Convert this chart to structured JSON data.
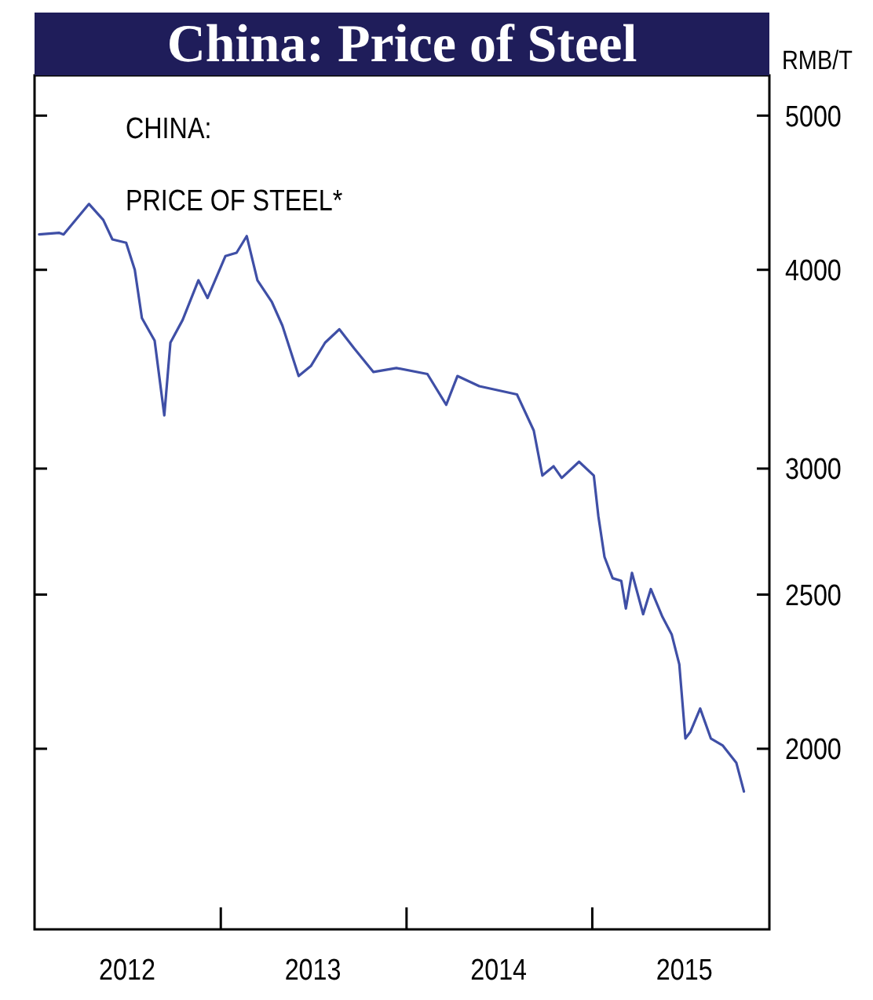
{
  "chart_data": {
    "type": "line",
    "title": "China: Price of Steel",
    "ylabel": "RMB/T",
    "annotations": [
      "CHINA:",
      "PRICE OF STEEL*"
    ],
    "log": true,
    "grid": false,
    "marker": "none",
    "line_style": "solid",
    "xlim": [
      "2012-01-01",
      "2015-12-15"
    ],
    "xticks": [
      {
        "value": "2012-07-01",
        "label": "2012"
      },
      {
        "value": "2013-01-01",
        "label": null
      },
      {
        "value": "2013-07-01",
        "label": "2013"
      },
      {
        "value": "2014-01-01",
        "label": null
      },
      {
        "value": "2014-07-01",
        "label": "2014"
      },
      {
        "value": "2015-01-01",
        "label": null
      },
      {
        "value": "2015-07-01",
        "label": "2015"
      }
    ],
    "ylim": [
      1540,
      5300
    ],
    "yticks": [
      2000,
      2500,
      3000,
      4000,
      5000
    ],
    "x": [
      "2012-01-10",
      "2012-02-18",
      "2012-02-27",
      "2012-04-17",
      "2012-05-15",
      "2012-06-02",
      "2012-06-29",
      "2012-07-16",
      "2012-07-30",
      "2012-08-24",
      "2012-09-12",
      "2012-09-24",
      "2012-10-18",
      "2012-11-18",
      "2012-12-06",
      "2013-01-10",
      "2013-02-01",
      "2013-02-21",
      "2013-03-14",
      "2013-04-11",
      "2013-05-02",
      "2013-06-03",
      "2013-06-27",
      "2013-07-25",
      "2013-08-22",
      "2013-09-20",
      "2013-10-28",
      "2013-12-12",
      "2014-02-11",
      "2014-03-20",
      "2014-04-11",
      "2014-05-24",
      "2014-08-06",
      "2014-09-08",
      "2014-09-25",
      "2014-10-17",
      "2014-11-02",
      "2014-12-06",
      "2015-01-04",
      "2015-01-13",
      "2015-01-25",
      "2015-02-10",
      "2015-02-27",
      "2015-03-08",
      "2015-03-20",
      "2015-04-11",
      "2015-04-26",
      "2015-05-19",
      "2015-06-06",
      "2015-06-21",
      "2015-07-03",
      "2015-07-13",
      "2015-08-01",
      "2015-08-22",
      "2015-09-14",
      "2015-10-11",
      "2015-10-26"
    ],
    "series": [
      {
        "color": "#3f4fa6",
        "values": [
          4210,
          4220,
          4210,
          4400,
          4300,
          4180,
          4160,
          4000,
          3730,
          3610,
          3240,
          3600,
          3720,
          3940,
          3840,
          4080,
          4100,
          4200,
          3940,
          3820,
          3690,
          3430,
          3480,
          3600,
          3670,
          3570,
          3450,
          3470,
          3440,
          3290,
          3430,
          3380,
          3340,
          3170,
          2970,
          3010,
          2960,
          3030,
          2970,
          2800,
          2640,
          2560,
          2550,
          2450,
          2580,
          2430,
          2520,
          2420,
          2360,
          2260,
          2030,
          2050,
          2120,
          2030,
          2010,
          1960,
          1880
        ]
      }
    ]
  }
}
